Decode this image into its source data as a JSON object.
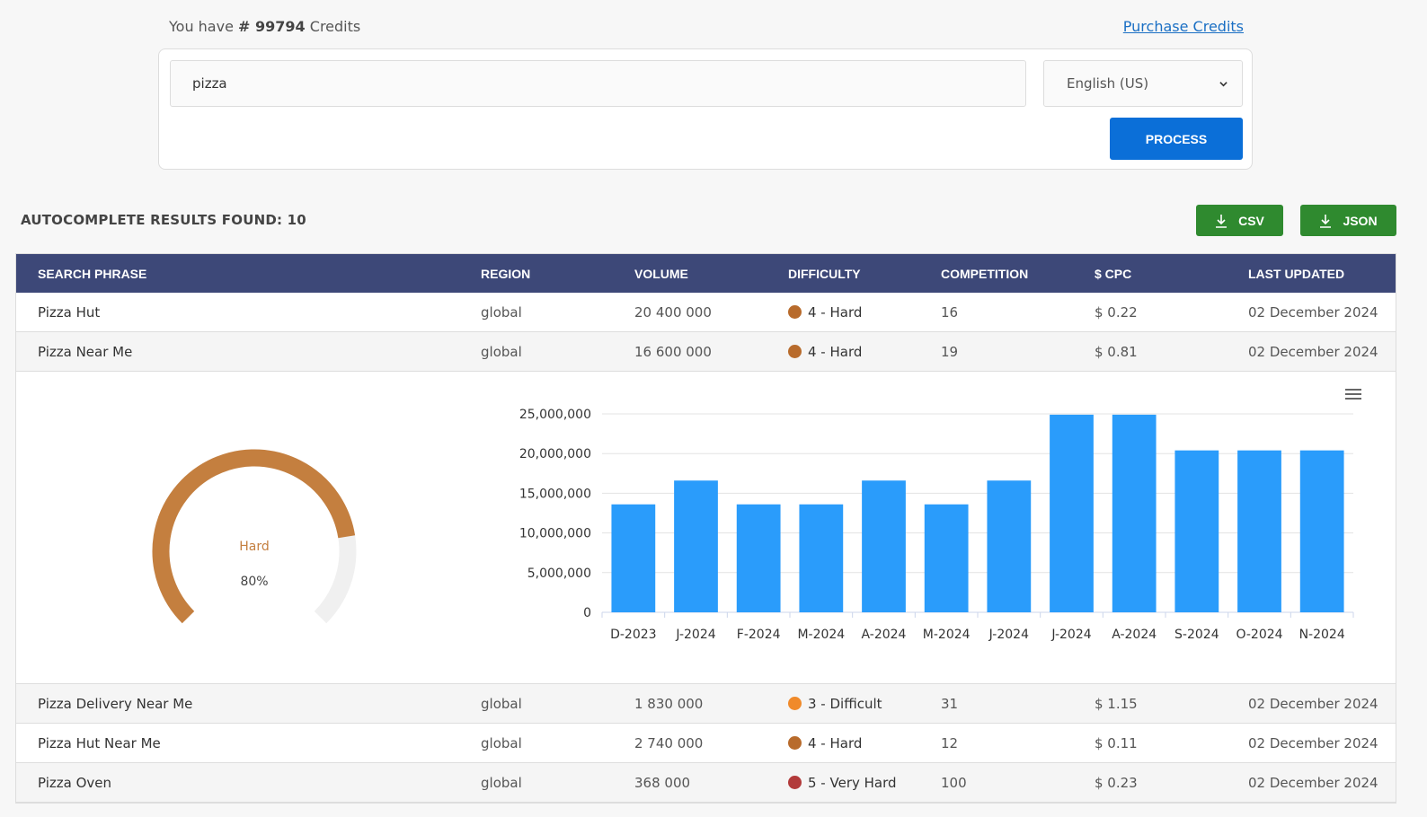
{
  "credits": {
    "prefix": "You have",
    "hash": "#",
    "amount": "99794",
    "suffix": "Credits"
  },
  "purchase_link": "Purchase Credits",
  "search": {
    "value": "pizza",
    "language": "English (US)",
    "process_label": "PROCESS"
  },
  "results": {
    "title": "AUTOCOMPLETE RESULTS FOUND: 10",
    "csv_label": "CSV",
    "json_label": "JSON"
  },
  "table": {
    "headers": [
      "SEARCH PHRASE",
      "REGION",
      "VOLUME",
      "DIFFICULTY",
      "COMPETITION",
      "$ CPC",
      "LAST UPDATED"
    ],
    "rows": [
      {
        "phrase": "Pizza Hut",
        "region": "global",
        "volume": "20 400 000",
        "difficulty": "4 - Hard",
        "color": "#b86b2c",
        "competition": "16",
        "cpc": "$ 0.22",
        "updated": "02 December 2024"
      },
      {
        "phrase": "Pizza Near Me",
        "region": "global",
        "volume": "16 600 000",
        "difficulty": "4 - Hard",
        "color": "#b86b2c",
        "competition": "19",
        "cpc": "$ 0.81",
        "updated": "02 December 2024"
      },
      {
        "phrase": "Pizza Delivery Near Me",
        "region": "global",
        "volume": "1 830 000",
        "difficulty": "3 - Difficult",
        "color": "#f08a2a",
        "competition": "31",
        "cpc": "$ 1.15",
        "updated": "02 December 2024"
      },
      {
        "phrase": "Pizza Hut Near Me",
        "region": "global",
        "volume": "2 740 000",
        "difficulty": "4 - Hard",
        "color": "#b86b2c",
        "competition": "12",
        "cpc": "$ 0.11",
        "updated": "02 December 2024"
      },
      {
        "phrase": "Pizza Oven",
        "region": "global",
        "volume": "368 000",
        "difficulty": "5 - Very Hard",
        "color": "#b23a3a",
        "competition": "100",
        "cpc": "$ 0.23",
        "updated": "02 December 2024"
      }
    ]
  },
  "gauge": {
    "label": "Hard",
    "percent_text": "80%",
    "value": 0.8,
    "color": "#c47f3f",
    "track_color": "#f0f0f0"
  },
  "chart_data": {
    "type": "bar",
    "categories": [
      "D-2023",
      "J-2024",
      "F-2024",
      "M-2024",
      "A-2024",
      "M-2024",
      "J-2024",
      "J-2024",
      "A-2024",
      "S-2024",
      "O-2024",
      "N-2024"
    ],
    "values": [
      13600000,
      16600000,
      13600000,
      13600000,
      16600000,
      13600000,
      16600000,
      24900000,
      24900000,
      20400000,
      20400000,
      20400000
    ],
    "ylim": [
      0,
      25000000
    ],
    "yticks": [
      "0",
      "5,000,000",
      "10,000,000",
      "15,000,000",
      "20,000,000",
      "25,000,000"
    ],
    "ytick_values": [
      0,
      5000000,
      10000000,
      15000000,
      20000000,
      25000000
    ],
    "bar_color": "#2a9cfb",
    "grid": true
  }
}
